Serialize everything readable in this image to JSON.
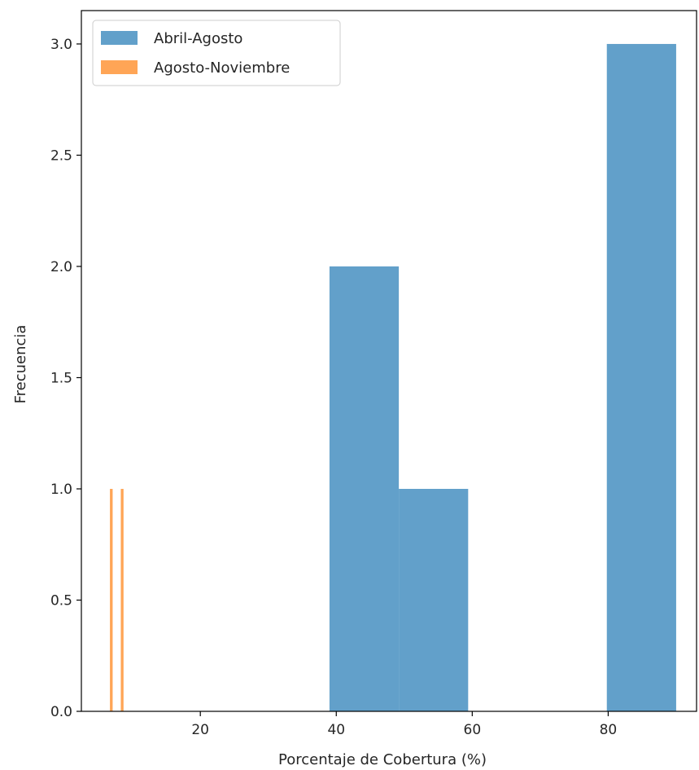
{
  "chart_data": {
    "type": "histogram",
    "title": "",
    "xlabel": "Porcentaje de Cobertura (%)",
    "ylabel": "Frecuencia",
    "xlim": [
      2.5,
      93
    ],
    "ylim": [
      0,
      3.15
    ],
    "xticks": [
      20,
      40,
      60,
      80
    ],
    "yticks": [
      0.0,
      0.5,
      1.0,
      1.5,
      2.0,
      2.5,
      3.0
    ],
    "grid": false,
    "legend_position": "top-left",
    "series": [
      {
        "name": "Abril-Agosto",
        "color": "#1f77b4",
        "alpha": 0.7,
        "bins": [
          {
            "x0": 39.0,
            "x1": 49.2,
            "count": 2
          },
          {
            "x0": 49.2,
            "x1": 59.4,
            "count": 1
          },
          {
            "x0": 59.4,
            "x1": 69.6,
            "count": 0
          },
          {
            "x0": 69.6,
            "x1": 79.8,
            "count": 0
          },
          {
            "x0": 79.8,
            "x1": 90.0,
            "count": 3
          }
        ]
      },
      {
        "name": "Agosto-Noviembre",
        "color": "#ff7f0e",
        "alpha": 0.7,
        "bins": [
          {
            "x0": 6.7,
            "x1": 7.1,
            "count": 1
          },
          {
            "x0": 7.1,
            "x1": 8.3,
            "count": 0
          },
          {
            "x0": 8.3,
            "x1": 8.7,
            "count": 1
          }
        ]
      }
    ]
  }
}
